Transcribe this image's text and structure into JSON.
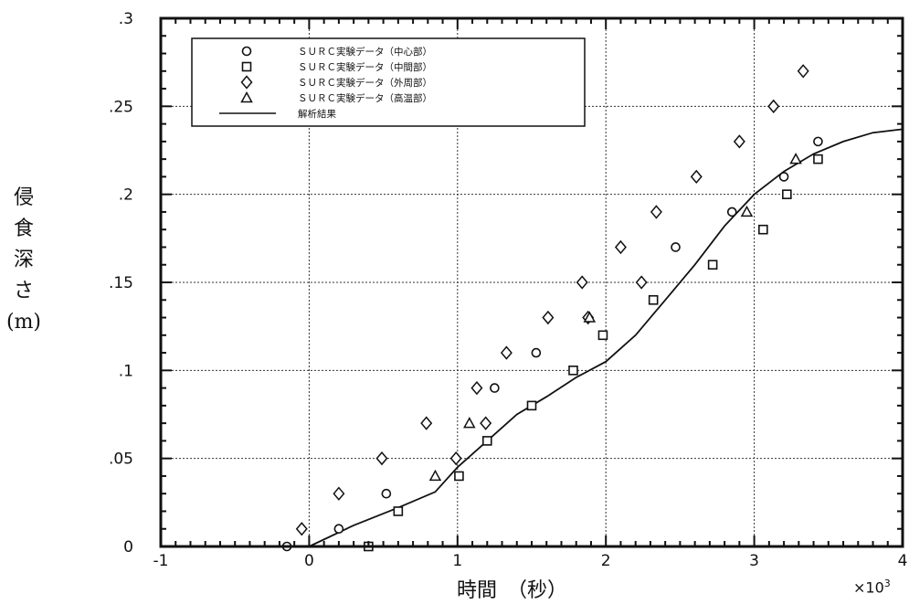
{
  "chart_data": {
    "type": "scatter",
    "xlabel": "時間　（秒）",
    "ylabel": "侵食深さ(m)",
    "x_multiplier_label": "×10",
    "x_multiplier_exp": "3",
    "xlim": [
      -1,
      4
    ],
    "ylim": [
      0,
      0.3
    ],
    "xticks": [
      -1,
      0,
      1,
      2,
      3,
      4
    ],
    "xtick_labels": [
      "-1",
      "0",
      "1",
      "2",
      "3",
      "4"
    ],
    "yticks": [
      0,
      0.05,
      0.1,
      0.15,
      0.2,
      0.25,
      0.3
    ],
    "ytick_labels": [
      "0",
      ".05",
      ".1",
      ".15",
      ".2",
      ".25",
      ".3"
    ],
    "grid": true,
    "legend_position": "top-left",
    "series": [
      {
        "name": "ＳＵＲＣ実験データ（中心部）",
        "marker": "circle",
        "points": [
          [
            -0.15,
            0.0
          ],
          [
            0.2,
            0.01
          ],
          [
            0.52,
            0.03
          ],
          [
            1.25,
            0.09
          ],
          [
            1.53,
            0.11
          ],
          [
            2.47,
            0.17
          ],
          [
            2.85,
            0.19
          ],
          [
            3.2,
            0.21
          ],
          [
            3.43,
            0.23
          ]
        ]
      },
      {
        "name": "ＳＵＲＣ実験データ（中間部）",
        "marker": "square",
        "points": [
          [
            0.4,
            0.0
          ],
          [
            0.6,
            0.02
          ],
          [
            1.01,
            0.04
          ],
          [
            1.2,
            0.06
          ],
          [
            1.5,
            0.08
          ],
          [
            1.78,
            0.1
          ],
          [
            1.98,
            0.12
          ],
          [
            2.32,
            0.14
          ],
          [
            2.72,
            0.16
          ],
          [
            3.06,
            0.18
          ],
          [
            3.22,
            0.2
          ],
          [
            3.43,
            0.22
          ]
        ]
      },
      {
        "name": "ＳＵＲＣ実験データ（外周部）",
        "marker": "diamond",
        "points": [
          [
            -0.05,
            0.01
          ],
          [
            0.2,
            0.03
          ],
          [
            0.49,
            0.05
          ],
          [
            0.79,
            0.07
          ],
          [
            0.99,
            0.05
          ],
          [
            1.13,
            0.09
          ],
          [
            1.19,
            0.07
          ],
          [
            1.33,
            0.11
          ],
          [
            1.61,
            0.13
          ],
          [
            1.84,
            0.15
          ],
          [
            1.88,
            0.13
          ],
          [
            2.1,
            0.17
          ],
          [
            2.24,
            0.15
          ],
          [
            2.34,
            0.19
          ],
          [
            2.61,
            0.21
          ],
          [
            2.9,
            0.23
          ],
          [
            3.13,
            0.25
          ],
          [
            3.33,
            0.27
          ]
        ]
      },
      {
        "name": "ＳＵＲＣ実験データ（高温部）",
        "marker": "triangle",
        "points": [
          [
            0.85,
            0.04
          ],
          [
            1.08,
            0.07
          ],
          [
            1.89,
            0.13
          ],
          [
            2.95,
            0.19
          ],
          [
            3.28,
            0.22
          ]
        ]
      },
      {
        "name": "解析結果",
        "marker": "line",
        "points": [
          [
            0.0,
            0.0
          ],
          [
            0.3,
            0.012
          ],
          [
            0.6,
            0.022
          ],
          [
            0.85,
            0.031
          ],
          [
            1.0,
            0.045
          ],
          [
            1.2,
            0.06
          ],
          [
            1.4,
            0.075
          ],
          [
            1.6,
            0.085
          ],
          [
            1.8,
            0.096
          ],
          [
            2.0,
            0.105
          ],
          [
            2.2,
            0.12
          ],
          [
            2.4,
            0.14
          ],
          [
            2.6,
            0.16
          ],
          [
            2.8,
            0.182
          ],
          [
            3.0,
            0.2
          ],
          [
            3.2,
            0.213
          ],
          [
            3.4,
            0.223
          ],
          [
            3.6,
            0.23
          ],
          [
            3.8,
            0.235
          ],
          [
            4.0,
            0.237
          ]
        ]
      }
    ]
  }
}
